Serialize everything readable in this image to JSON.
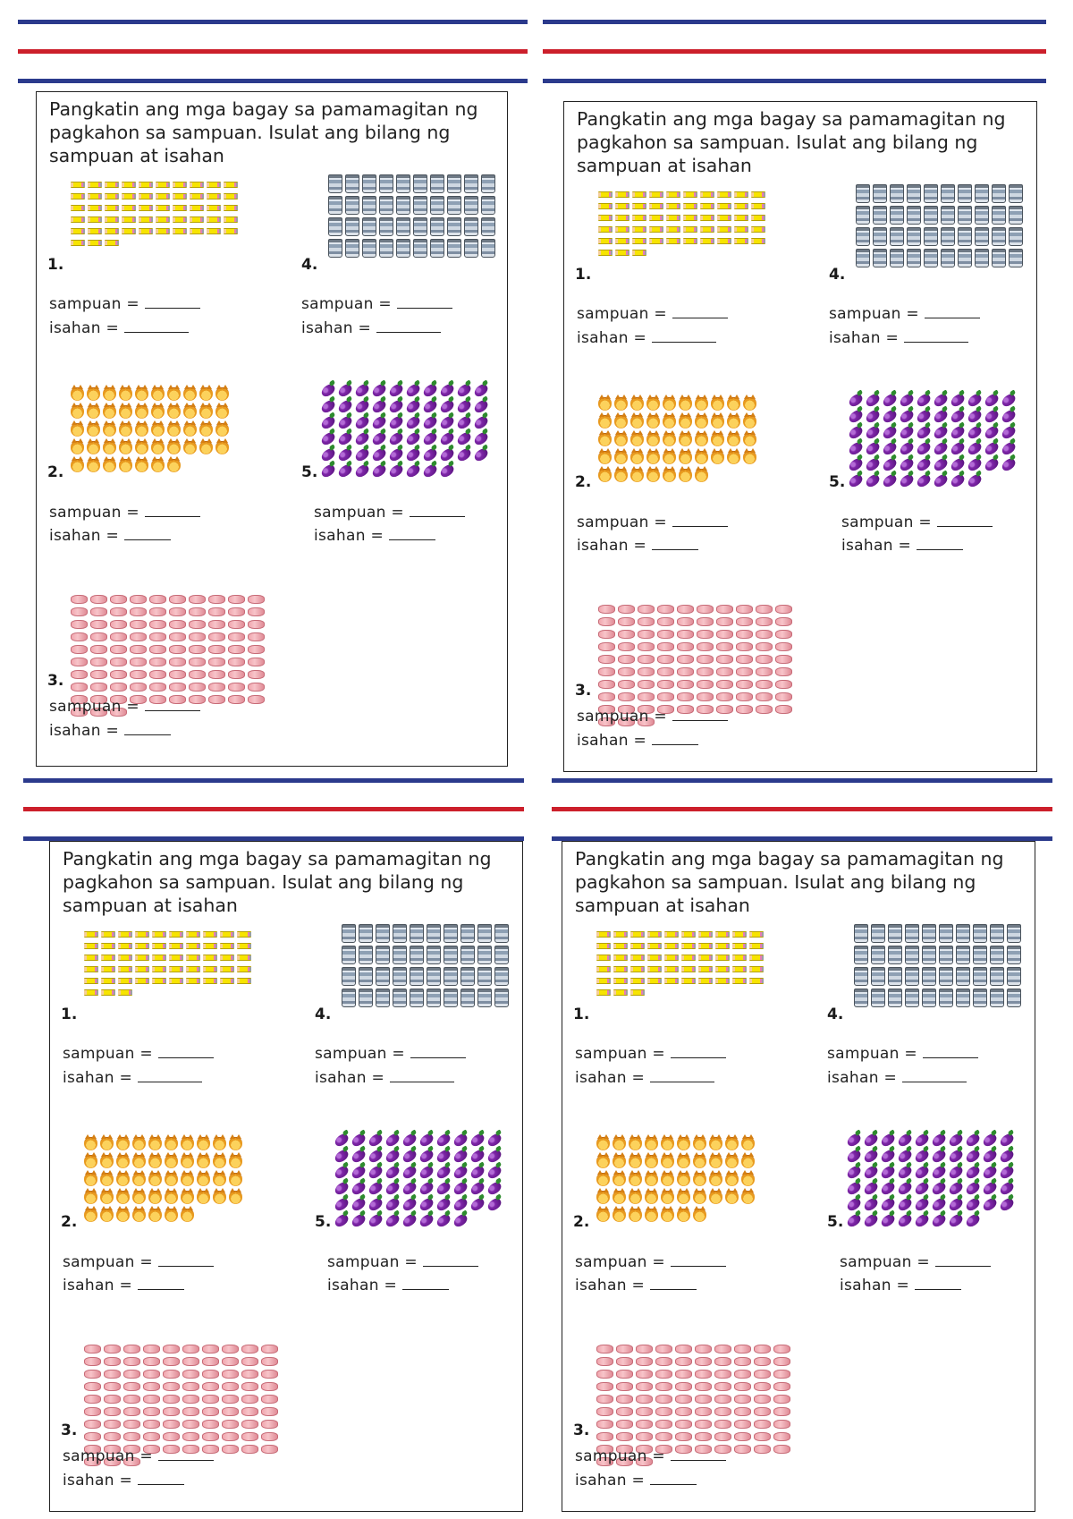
{
  "worksheet": {
    "instruction": "Pangkatin ang mga bagay sa pamamagitan ng pagkahon sa sampuan. Isulat ang bilang ng sampuan at isahan",
    "labels": {
      "tens": "sampuan =",
      "ones": "isahan ="
    },
    "items": [
      {
        "number": "1.",
        "object": "pencil-icon",
        "count": 53
      },
      {
        "number": "2.",
        "object": "cat-icon",
        "count": 47
      },
      {
        "number": "3.",
        "object": "pink-pig-icon",
        "count": 93
      },
      {
        "number": "4.",
        "object": "jar-icon",
        "count": 40
      },
      {
        "number": "5.",
        "object": "eggplant-icon",
        "count": 58
      }
    ],
    "colors": {
      "navy": "#2b3a8c",
      "red": "#cc1f2b"
    },
    "copies": 4
  }
}
